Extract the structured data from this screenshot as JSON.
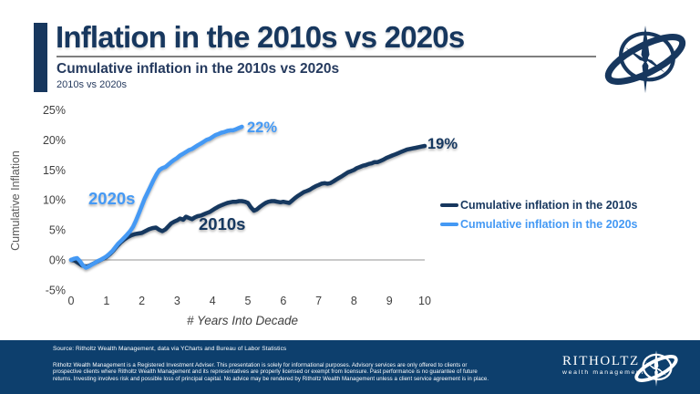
{
  "header": {
    "title": "Inflation in the 2010s vs 2020s",
    "subtitle": "Cumulative inflation in the 2010s vs 2020s",
    "subtitle2": "2010s vs 2020s"
  },
  "colors": {
    "navy": "#17375e",
    "light_blue": "#4499f4",
    "footer_background": "#0d3f6d",
    "title_rule_gray": "#7f7f7f",
    "zero_line_gray": "#a9a9a9"
  },
  "chart_data": {
    "type": "line",
    "title": "Cumulative inflation in the 2010s vs 2020s",
    "xlabel": "# Years Into Decade",
    "ylabel": "Cumulative Inflation",
    "xlim": [
      0,
      10
    ],
    "ylim": [
      -5,
      25
    ],
    "xticks": [
      "0",
      "1",
      "2",
      "3",
      "4",
      "5",
      "6",
      "7",
      "8",
      "9",
      "10"
    ],
    "ytick_labels": [
      "25%",
      "20%",
      "15%",
      "10%",
      "5%",
      "0%",
      "-5%"
    ],
    "ytick_values": [
      25,
      20,
      15,
      10,
      5,
      0,
      -5
    ],
    "grid": "zero-baseline only",
    "legend_position": "right",
    "series": [
      {
        "name": "Cumulative inflation in the 2010s",
        "label": "2010s",
        "end_label": "19%",
        "color": "#17375e",
        "points": [
          [
            0,
            0
          ],
          [
            0.1,
            -0.1
          ],
          [
            0.2,
            -0.5
          ],
          [
            0.3,
            -0.9
          ],
          [
            0.42,
            -1.1
          ],
          [
            0.5,
            -1.0
          ],
          [
            0.6,
            -0.7
          ],
          [
            0.7,
            -0.4
          ],
          [
            0.8,
            -0.1
          ],
          [
            0.9,
            0.2
          ],
          [
            1,
            0.5
          ],
          [
            1.1,
            1.0
          ],
          [
            1.2,
            1.6
          ],
          [
            1.3,
            2.3
          ],
          [
            1.4,
            2.9
          ],
          [
            1.5,
            3.4
          ],
          [
            1.6,
            3.8
          ],
          [
            1.7,
            4.1
          ],
          [
            1.8,
            4.3
          ],
          [
            1.9,
            4.4
          ],
          [
            2,
            4.5
          ],
          [
            2.1,
            4.8
          ],
          [
            2.2,
            5.1
          ],
          [
            2.3,
            5.3
          ],
          [
            2.4,
            5.4
          ],
          [
            2.5,
            5.0
          ],
          [
            2.58,
            4.8
          ],
          [
            2.67,
            5.1
          ],
          [
            2.75,
            5.6
          ],
          [
            2.83,
            6.1
          ],
          [
            2.92,
            6.4
          ],
          [
            3,
            6.6
          ],
          [
            3.08,
            6.9
          ],
          [
            3.17,
            6.7
          ],
          [
            3.25,
            7.2
          ],
          [
            3.33,
            7.0
          ],
          [
            3.42,
            6.8
          ],
          [
            3.5,
            7.1
          ],
          [
            3.58,
            7.3
          ],
          [
            3.67,
            7.4
          ],
          [
            3.75,
            7.6
          ],
          [
            3.83,
            7.8
          ],
          [
            3.92,
            8.0
          ],
          [
            4,
            8.3
          ],
          [
            4.08,
            8.6
          ],
          [
            4.17,
            8.9
          ],
          [
            4.25,
            9.1
          ],
          [
            4.33,
            9.3
          ],
          [
            4.42,
            9.5
          ],
          [
            4.5,
            9.6
          ],
          [
            4.58,
            9.7
          ],
          [
            4.67,
            9.7
          ],
          [
            4.75,
            9.8
          ],
          [
            4.83,
            9.8
          ],
          [
            4.92,
            9.7
          ],
          [
            5,
            9.5
          ],
          [
            5.08,
            8.8
          ],
          [
            5.17,
            8.2
          ],
          [
            5.25,
            8.4
          ],
          [
            5.33,
            8.8
          ],
          [
            5.42,
            9.2
          ],
          [
            5.5,
            9.5
          ],
          [
            5.58,
            9.7
          ],
          [
            5.67,
            9.8
          ],
          [
            5.75,
            9.8
          ],
          [
            5.83,
            9.7
          ],
          [
            5.92,
            9.6
          ],
          [
            6,
            9.7
          ],
          [
            6.08,
            9.6
          ],
          [
            6.17,
            9.5
          ],
          [
            6.25,
            9.9
          ],
          [
            6.33,
            10.3
          ],
          [
            6.42,
            10.7
          ],
          [
            6.5,
            11.0
          ],
          [
            6.58,
            11.3
          ],
          [
            6.67,
            11.5
          ],
          [
            6.75,
            11.7
          ],
          [
            6.83,
            12.0
          ],
          [
            6.92,
            12.3
          ],
          [
            7,
            12.5
          ],
          [
            7.08,
            12.7
          ],
          [
            7.17,
            12.8
          ],
          [
            7.25,
            12.7
          ],
          [
            7.33,
            12.8
          ],
          [
            7.42,
            13.1
          ],
          [
            7.5,
            13.4
          ],
          [
            7.58,
            13.7
          ],
          [
            7.67,
            14.0
          ],
          [
            7.75,
            14.3
          ],
          [
            7.83,
            14.6
          ],
          [
            7.92,
            14.8
          ],
          [
            8,
            15.0
          ],
          [
            8.08,
            15.3
          ],
          [
            8.17,
            15.5
          ],
          [
            8.25,
            15.7
          ],
          [
            8.33,
            15.8
          ],
          [
            8.42,
            16.0
          ],
          [
            8.5,
            16.1
          ],
          [
            8.58,
            16.3
          ],
          [
            8.67,
            16.3
          ],
          [
            8.75,
            16.5
          ],
          [
            8.83,
            16.7
          ],
          [
            8.92,
            17.0
          ],
          [
            9,
            17.2
          ],
          [
            9.08,
            17.4
          ],
          [
            9.17,
            17.6
          ],
          [
            9.25,
            17.8
          ],
          [
            9.33,
            18.0
          ],
          [
            9.42,
            18.2
          ],
          [
            9.5,
            18.4
          ],
          [
            9.58,
            18.5
          ],
          [
            9.67,
            18.6
          ],
          [
            9.75,
            18.7
          ],
          [
            9.83,
            18.8
          ],
          [
            9.92,
            18.9
          ],
          [
            10,
            19.0
          ]
        ]
      },
      {
        "name": "Cumulative inflation in the 2020s",
        "label": "2020s",
        "end_label": "22%",
        "color": "#4499f4",
        "points": [
          [
            0,
            0
          ],
          [
            0.08,
            0.2
          ],
          [
            0.17,
            0.3
          ],
          [
            0.25,
            -0.2
          ],
          [
            0.33,
            -0.9
          ],
          [
            0.42,
            -1.3
          ],
          [
            0.5,
            -1.1
          ],
          [
            0.58,
            -0.8
          ],
          [
            0.67,
            -0.5
          ],
          [
            0.75,
            -0.2
          ],
          [
            0.83,
            0.0
          ],
          [
            0.92,
            0.3
          ],
          [
            1,
            0.6
          ],
          [
            1.08,
            1.0
          ],
          [
            1.17,
            1.5
          ],
          [
            1.25,
            2.1
          ],
          [
            1.33,
            2.7
          ],
          [
            1.42,
            3.2
          ],
          [
            1.5,
            3.7
          ],
          [
            1.58,
            4.2
          ],
          [
            1.67,
            4.8
          ],
          [
            1.75,
            5.5
          ],
          [
            1.83,
            6.5
          ],
          [
            1.92,
            7.8
          ],
          [
            2,
            9.0
          ],
          [
            2.08,
            10.2
          ],
          [
            2.17,
            11.3
          ],
          [
            2.25,
            12.3
          ],
          [
            2.33,
            13.3
          ],
          [
            2.42,
            14.3
          ],
          [
            2.5,
            15.0
          ],
          [
            2.58,
            15.3
          ],
          [
            2.67,
            15.5
          ],
          [
            2.75,
            15.9
          ],
          [
            2.83,
            16.3
          ],
          [
            2.92,
            16.7
          ],
          [
            3,
            17.0
          ],
          [
            3.08,
            17.4
          ],
          [
            3.17,
            17.7
          ],
          [
            3.25,
            18.0
          ],
          [
            3.33,
            18.3
          ],
          [
            3.42,
            18.5
          ],
          [
            3.5,
            18.8
          ],
          [
            3.58,
            19.1
          ],
          [
            3.67,
            19.4
          ],
          [
            3.75,
            19.7
          ],
          [
            3.83,
            20.0
          ],
          [
            3.92,
            20.2
          ],
          [
            4,
            20.5
          ],
          [
            4.08,
            20.8
          ],
          [
            4.17,
            21.0
          ],
          [
            4.25,
            21.2
          ],
          [
            4.33,
            21.3
          ],
          [
            4.42,
            21.5
          ],
          [
            4.5,
            21.6
          ],
          [
            4.58,
            21.6
          ],
          [
            4.67,
            21.8
          ],
          [
            4.75,
            22.0
          ],
          [
            4.83,
            22.2
          ]
        ]
      }
    ]
  },
  "legend": {
    "items": [
      {
        "label": "Cumulative inflation in the 2010s",
        "color": "#17375e"
      },
      {
        "label": "Cumulative inflation in the 2020s",
        "color": "#4499f4"
      }
    ]
  },
  "footer": {
    "source": "Source: Ritholtz Wealth Management, data via YCharts and Bureau of Labor Statistics",
    "disclaimer_lines": [
      "Ritholtz Wealth Management is a Registered Investment Adviser. This presentation is solely for informational purposes. Advisory services are only offered to clients or",
      "prospective clients where Ritholtz Wealth Management and its representatives are properly licensed or exempt from licensure. Past performance is no guarantee of future",
      "returns. Investing involves risk and possible loss of principal capital. No advice may be rendered by Ritholtz Wealth Management unless a client service agreement is in place."
    ],
    "brand": "RITHOLTZ",
    "brand_sub": "wealth management"
  }
}
